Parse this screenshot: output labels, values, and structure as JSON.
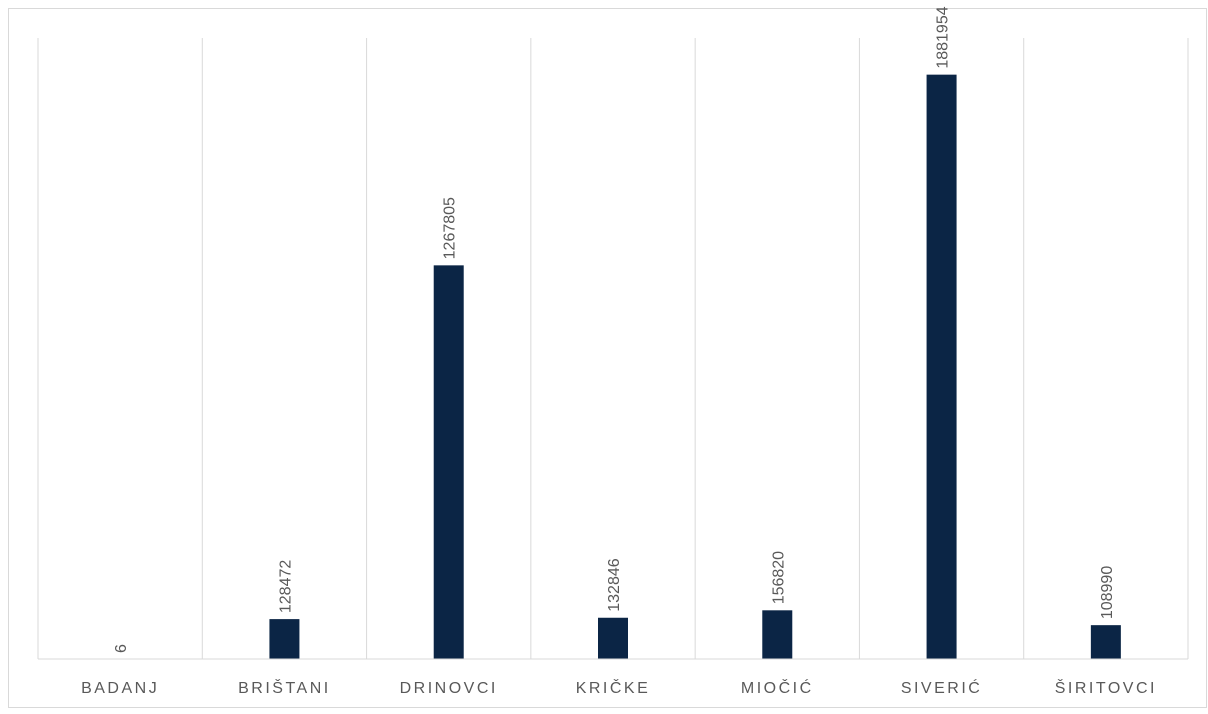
{
  "chart_data": {
    "type": "bar",
    "title": "",
    "xlabel": "",
    "ylabel": "",
    "categories": [
      "BADANJ",
      "BRIŠTANI",
      "DRINOVCI",
      "KRIČKE",
      "MIOČIĆ",
      "SIVERIĆ",
      "ŠIRITOVCI"
    ],
    "series": [
      {
        "values": [
          6,
          128472,
          1267805,
          132846,
          156820,
          1881954,
          108990
        ],
        "color": "#0b2545"
      }
    ],
    "ylim": [
      0,
      2000000
    ],
    "grid": "vertical category separators",
    "legend": "none",
    "data_labels": true
  }
}
